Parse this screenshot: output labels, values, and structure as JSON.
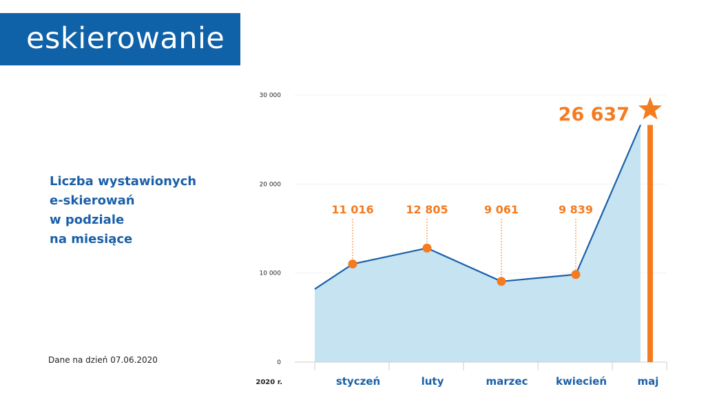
{
  "logo": {
    "text": "eskierowanie"
  },
  "headline": {
    "lines": [
      "Liczba wystawionych",
      "e-skierowań",
      "w podziale",
      "na miesiące"
    ]
  },
  "footnote": "Dane na dzień 07.06.2020",
  "colors": {
    "brand": "#0f61a8",
    "line": "#1a5fa8",
    "area": "#c6e3f1",
    "accent": "#f47b20",
    "text": "#222222"
  },
  "chart_data": {
    "type": "area",
    "x_prefix_label": "2020 r.",
    "categories": [
      "styczeń",
      "luty",
      "marzec",
      "kwiecień",
      "maj"
    ],
    "values": [
      11016,
      12805,
      9061,
      9839,
      26637
    ],
    "value_labels": [
      "11 016",
      "12 805",
      "9 061",
      "9 839",
      "26 637"
    ],
    "start_value": 8200,
    "ylim": [
      0,
      30000
    ],
    "yticks": [
      0,
      10000,
      20000,
      30000
    ],
    "ytick_labels": [
      "0",
      "10 000",
      "20 000",
      "30 000"
    ],
    "grid": true,
    "highlight": {
      "category": "maj",
      "marker": "star-icon"
    }
  }
}
